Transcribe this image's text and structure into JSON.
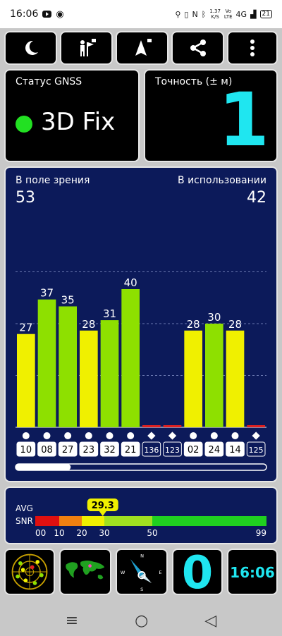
{
  "status_bar": {
    "time": "16:06",
    "net_speed_top": "1.37",
    "net_speed_bottom": "K/S",
    "volte_top": "Vo",
    "volte_bottom": "LTE",
    "network": "4G",
    "battery": "21"
  },
  "toolbar": {
    "buttons": [
      "night-mode",
      "radar-locked",
      "navigation-locked",
      "share",
      "more"
    ]
  },
  "gnss": {
    "label": "Статус GNSS",
    "fix": "3D Fix",
    "fix_color": "#22e022"
  },
  "accuracy": {
    "label": "Точность (± м)",
    "value": "1",
    "color": "#1fe6f0"
  },
  "satellites": {
    "in_view_label": "В поле зрения",
    "in_view": "53",
    "in_use_label": "В использовании",
    "in_use": "42"
  },
  "chart_data": {
    "type": "bar",
    "categories": [
      "10",
      "08",
      "27",
      "23",
      "32",
      "21",
      "136",
      "123",
      "02",
      "24",
      "14",
      "125"
    ],
    "values": [
      27,
      37,
      35,
      28,
      31,
      40,
      0,
      0,
      28,
      30,
      28,
      0
    ],
    "value_labels": [
      "27",
      "37",
      "35",
      "28",
      "31",
      "40",
      "",
      "",
      "28",
      "30",
      "28",
      ""
    ],
    "markers": [
      "circle",
      "circle",
      "circle",
      "circle",
      "circle",
      "circle",
      "diamond",
      "diamond",
      "circle",
      "circle",
      "circle",
      "diamond"
    ],
    "boxed_style": [
      "light",
      "light",
      "light",
      "light",
      "light",
      "light",
      "dark",
      "dark",
      "light",
      "light",
      "light",
      "dark"
    ],
    "ylim": [
      0,
      60
    ],
    "grid": true,
    "colors": {
      "green": "#8ee000",
      "yellow": "#f0f000",
      "zero": "#e02020"
    }
  },
  "scroll": {
    "visible_fraction": 0.22
  },
  "snr": {
    "label_top": "AVG",
    "label_bottom": "SNR",
    "avg": "29.3",
    "avg_value": 29.3,
    "scale": [
      "00",
      "10",
      "20",
      "30",
      "50",
      "99"
    ],
    "segments": [
      {
        "from": 0,
        "to": 10,
        "color": "#e01010"
      },
      {
        "from": 10,
        "to": 20,
        "color": "#f08010"
      },
      {
        "from": 20,
        "to": 30,
        "color": "#f0f000"
      },
      {
        "from": 30,
        "to": 50,
        "color": "#a0e020"
      },
      {
        "from": 50,
        "to": 99,
        "color": "#20d020"
      }
    ]
  },
  "bottom": {
    "counter": "0",
    "counter_color": "#1fe6f0",
    "clock": "16:06",
    "clock_color": "#1fe6f0"
  },
  "nav": {
    "menu": "≡",
    "home": "○",
    "back": "◁"
  }
}
